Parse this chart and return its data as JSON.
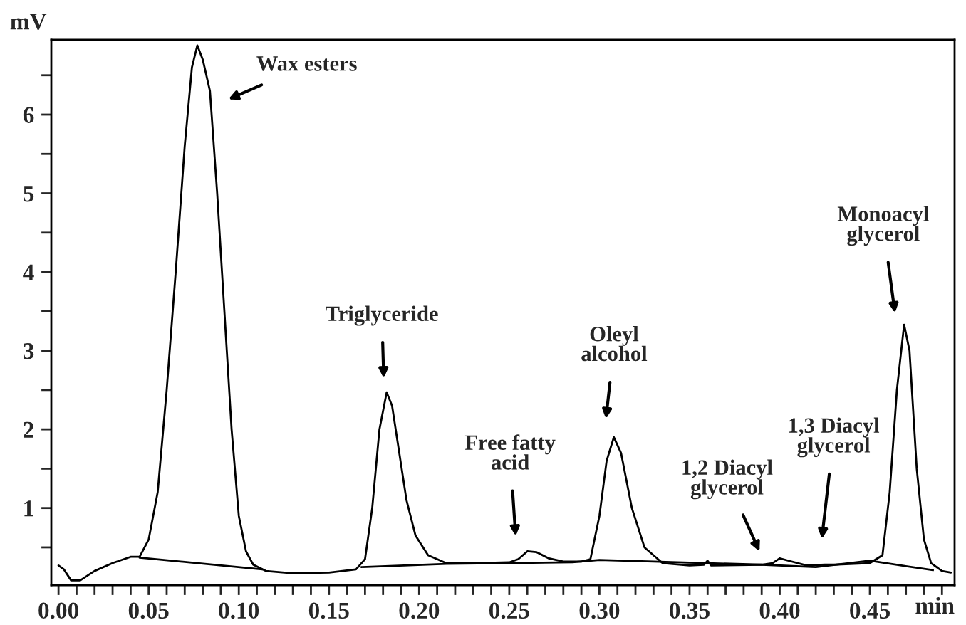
{
  "chart_data": {
    "type": "line",
    "xlabel": "min",
    "ylabel": "mV",
    "grid": false,
    "legend": false,
    "marker": "none",
    "line_style": "solid",
    "xlim": [
      -0.004,
      0.497
    ],
    "ylim": [
      0.02,
      6.95
    ],
    "xticks": [
      {
        "value": 0.0,
        "label": "0.00"
      },
      {
        "value": 0.01,
        "label": null
      },
      {
        "value": 0.02,
        "label": null
      },
      {
        "value": 0.03,
        "label": null
      },
      {
        "value": 0.04,
        "label": null
      },
      {
        "value": 0.05,
        "label": "0.05"
      },
      {
        "value": 0.06,
        "label": null
      },
      {
        "value": 0.07,
        "label": null
      },
      {
        "value": 0.08,
        "label": null
      },
      {
        "value": 0.09,
        "label": null
      },
      {
        "value": 0.1,
        "label": "0.10"
      },
      {
        "value": 0.11,
        "label": null
      },
      {
        "value": 0.12,
        "label": null
      },
      {
        "value": 0.13,
        "label": null
      },
      {
        "value": 0.14,
        "label": null
      },
      {
        "value": 0.15,
        "label": "0.15"
      },
      {
        "value": 0.16,
        "label": null
      },
      {
        "value": 0.17,
        "label": null
      },
      {
        "value": 0.18,
        "label": null
      },
      {
        "value": 0.19,
        "label": null
      },
      {
        "value": 0.2,
        "label": "0.20"
      },
      {
        "value": 0.21,
        "label": null
      },
      {
        "value": 0.22,
        "label": null
      },
      {
        "value": 0.23,
        "label": null
      },
      {
        "value": 0.24,
        "label": null
      },
      {
        "value": 0.25,
        "label": "0.25"
      },
      {
        "value": 0.26,
        "label": null
      },
      {
        "value": 0.27,
        "label": null
      },
      {
        "value": 0.28,
        "label": null
      },
      {
        "value": 0.29,
        "label": null
      },
      {
        "value": 0.3,
        "label": "0.30"
      },
      {
        "value": 0.31,
        "label": null
      },
      {
        "value": 0.32,
        "label": null
      },
      {
        "value": 0.33,
        "label": null
      },
      {
        "value": 0.34,
        "label": null
      },
      {
        "value": 0.35,
        "label": "0.35"
      },
      {
        "value": 0.36,
        "label": null
      },
      {
        "value": 0.37,
        "label": null
      },
      {
        "value": 0.38,
        "label": null
      },
      {
        "value": 0.39,
        "label": null
      },
      {
        "value": 0.4,
        "label": "0.40"
      },
      {
        "value": 0.41,
        "label": null
      },
      {
        "value": 0.42,
        "label": null
      },
      {
        "value": 0.43,
        "label": null
      },
      {
        "value": 0.44,
        "label": null
      },
      {
        "value": 0.45,
        "label": "0.45"
      },
      {
        "value": 0.46,
        "label": null
      },
      {
        "value": 0.47,
        "label": null
      },
      {
        "value": 0.48,
        "label": null
      },
      {
        "value": 0.49,
        "label": null
      }
    ],
    "yticks": [
      {
        "value": 0.5,
        "label": null
      },
      1,
      {
        "value": 1.5,
        "label": null
      },
      2,
      {
        "value": 2.5,
        "label": null
      },
      3,
      {
        "value": 3.5,
        "label": null
      },
      4,
      {
        "value": 4.5,
        "label": null
      },
      5,
      {
        "value": 5.5,
        "label": null
      },
      6,
      {
        "value": 6.5,
        "label": null
      }
    ],
    "series": [
      {
        "color": "#000000",
        "x": [
          0.0,
          0.003,
          0.007,
          0.012,
          0.02,
          0.03,
          0.04,
          0.045,
          0.05,
          0.055,
          0.06,
          0.065,
          0.07,
          0.074,
          0.077,
          0.08,
          0.084,
          0.088,
          0.092,
          0.096,
          0.1,
          0.104,
          0.108,
          0.115,
          0.13,
          0.15,
          0.165,
          0.17,
          0.174,
          0.178,
          0.182,
          0.185,
          0.189,
          0.193,
          0.198,
          0.205,
          0.215,
          0.23,
          0.25,
          0.255,
          0.26,
          0.265,
          0.272,
          0.28,
          0.29,
          0.295,
          0.3,
          0.304,
          0.308,
          0.312,
          0.318,
          0.325,
          0.335,
          0.35,
          0.358,
          0.36,
          0.362,
          0.39,
          0.396,
          0.4,
          0.405,
          0.415,
          0.425,
          0.43,
          0.45,
          0.457,
          0.461,
          0.465,
          0.469,
          0.472,
          0.476,
          0.48,
          0.484,
          0.49,
          0.495
        ],
        "values": [
          0.27,
          0.22,
          0.08,
          0.08,
          0.2,
          0.3,
          0.38,
          0.38,
          0.6,
          1.2,
          2.5,
          4.0,
          5.6,
          6.6,
          6.88,
          6.7,
          6.3,
          5.0,
          3.5,
          2.0,
          0.9,
          0.45,
          0.28,
          0.2,
          0.17,
          0.18,
          0.22,
          0.35,
          1.0,
          2.0,
          2.47,
          2.3,
          1.7,
          1.1,
          0.65,
          0.4,
          0.3,
          0.3,
          0.31,
          0.35,
          0.45,
          0.44,
          0.36,
          0.32,
          0.32,
          0.35,
          0.9,
          1.6,
          1.9,
          1.7,
          1.0,
          0.5,
          0.3,
          0.27,
          0.28,
          0.33,
          0.27,
          0.28,
          0.3,
          0.36,
          0.33,
          0.27,
          0.28,
          0.28,
          0.3,
          0.4,
          1.2,
          2.5,
          3.33,
          3.0,
          1.5,
          0.6,
          0.3,
          0.2,
          0.18
        ]
      },
      {
        "color": "#000000",
        "x": [
          0.045,
          0.113,
          0.14,
          0.168,
          0.215,
          0.25,
          0.285,
          0.3,
          0.33,
          0.39,
          0.42,
          0.45,
          0.485
        ],
        "values": [
          0.37,
          0.22,
          null,
          0.25,
          0.29,
          0.3,
          0.31,
          0.34,
          0.32,
          0.28,
          0.25,
          0.33,
          0.21
        ]
      }
    ],
    "annotations": [
      "Wax esters",
      "Triglyceride",
      "Free fatty\nacid",
      "Oleyl\nalcohol",
      "1,2 Diacyl\nglycerol",
      "1,3 Diacyl\nglycerol",
      "Monoacyl\nglycerol"
    ]
  }
}
